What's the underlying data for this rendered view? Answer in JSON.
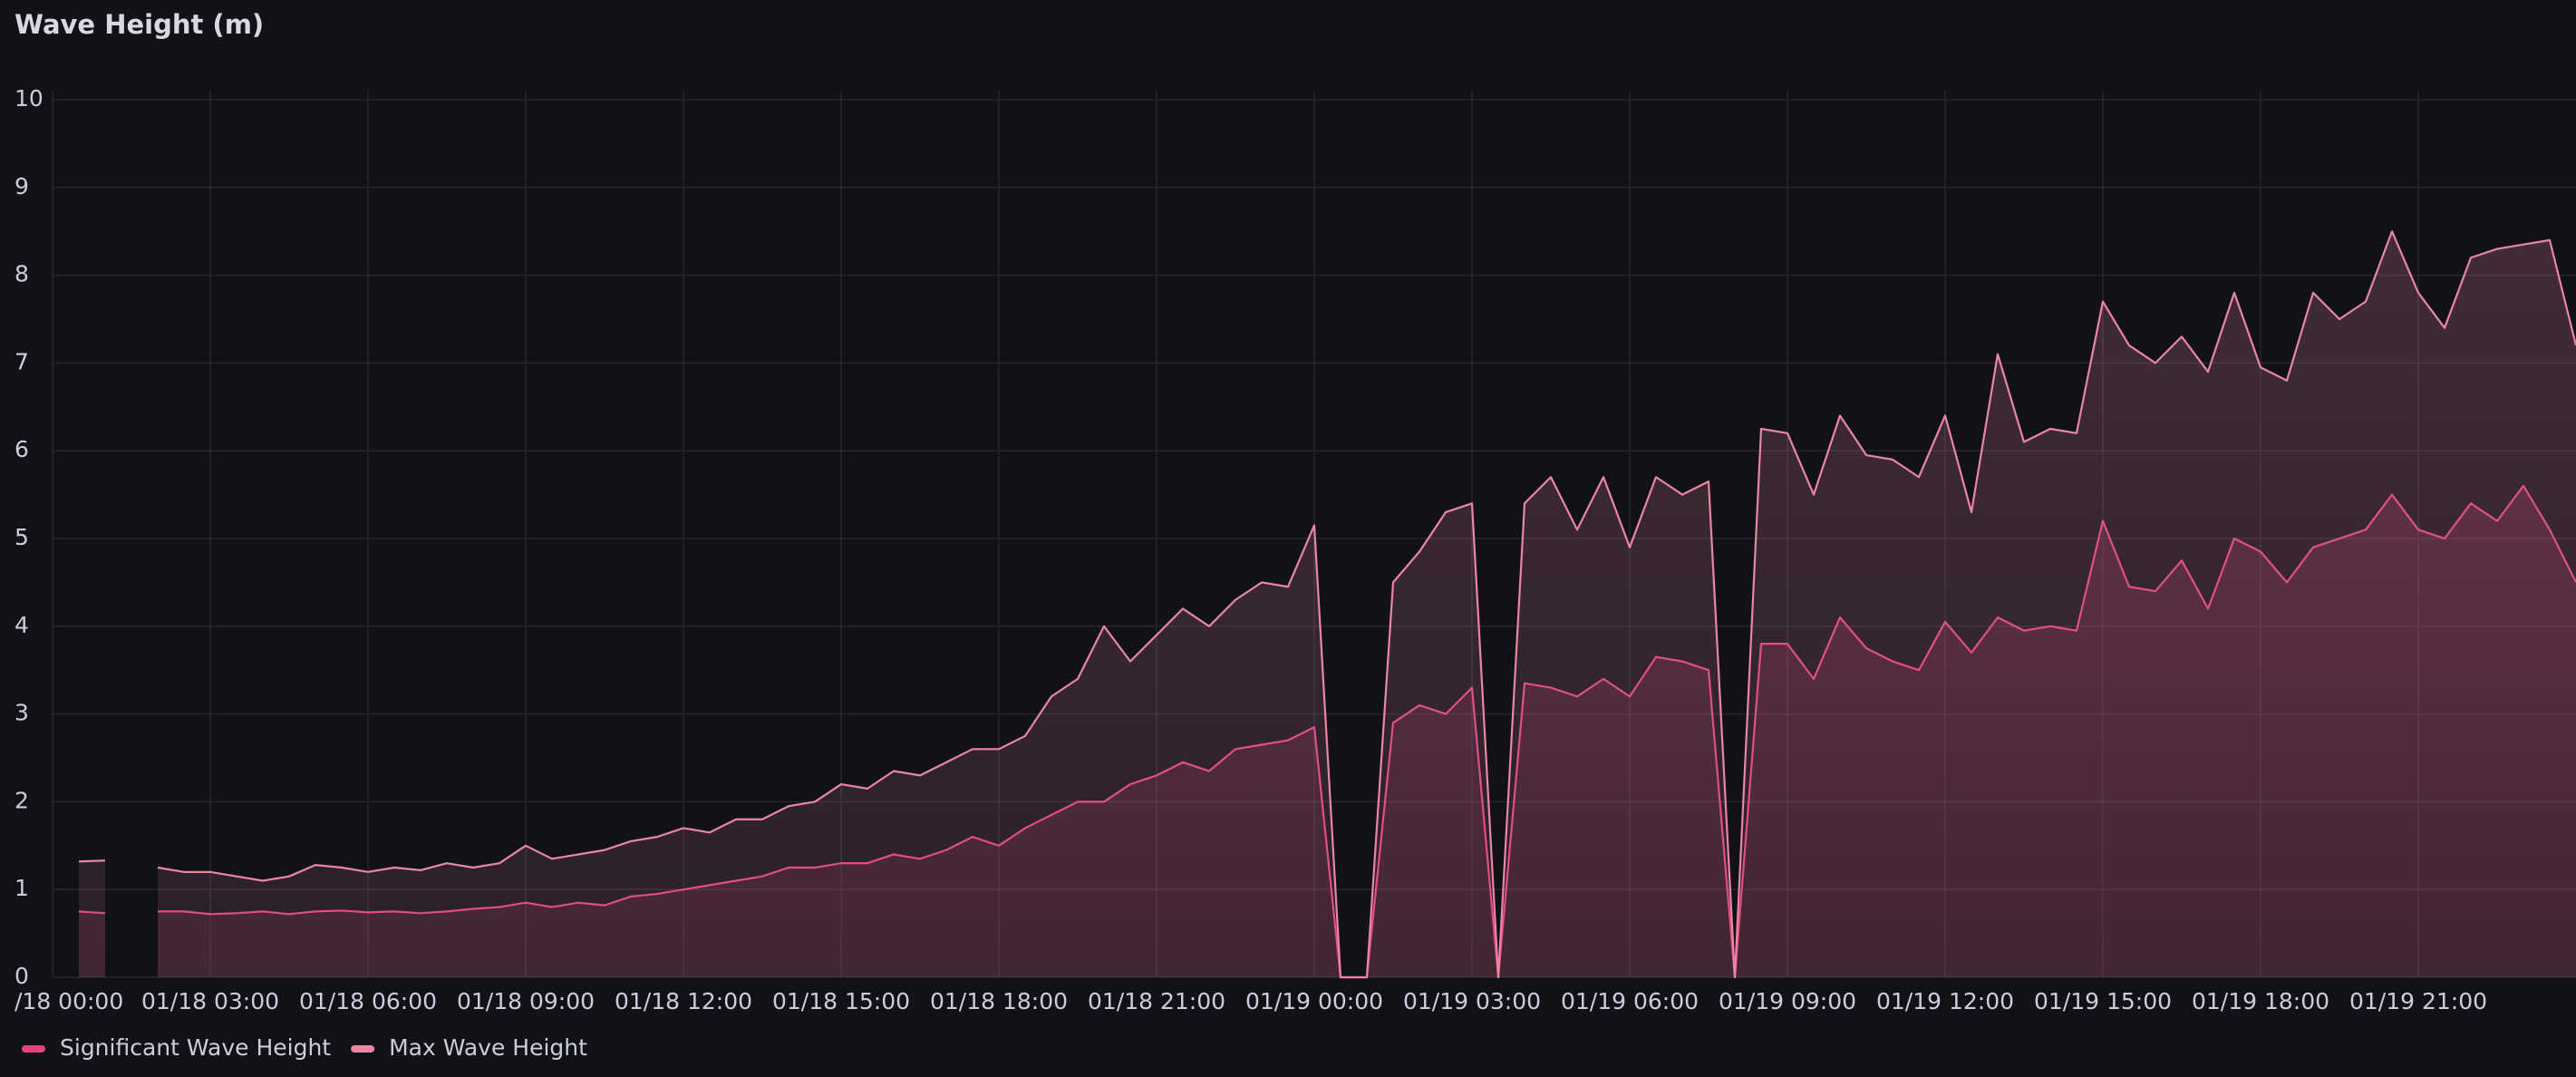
{
  "chart_data": {
    "type": "line",
    "title": "Wave Height (m)",
    "x": [
      "01/18 00:30",
      "01/18 01:00",
      "01/18 01:30",
      "01/18 02:00",
      "01/18 02:30",
      "01/18 03:00",
      "01/18 03:30",
      "01/18 04:00",
      "01/18 04:30",
      "01/18 05:00",
      "01/18 05:30",
      "01/18 06:00",
      "01/18 06:30",
      "01/18 07:00",
      "01/18 07:30",
      "01/18 08:00",
      "01/18 08:30",
      "01/18 09:00",
      "01/18 09:30",
      "01/18 10:00",
      "01/18 10:30",
      "01/18 11:00",
      "01/18 11:30",
      "01/18 12:00",
      "01/18 12:30",
      "01/18 13:00",
      "01/18 13:30",
      "01/18 14:00",
      "01/18 14:30",
      "01/18 15:00",
      "01/18 15:30",
      "01/18 16:00",
      "01/18 16:30",
      "01/18 17:00",
      "01/18 17:30",
      "01/18 18:00",
      "01/18 18:30",
      "01/18 19:00",
      "01/18 19:30",
      "01/18 20:00",
      "01/18 20:30",
      "01/18 21:00",
      "01/18 21:30",
      "01/18 22:00",
      "01/18 22:30",
      "01/18 23:00",
      "01/18 23:30",
      "01/19 00:00",
      "01/19 00:30",
      "01/19 01:00",
      "01/19 01:30",
      "01/19 02:00",
      "01/19 02:30",
      "01/19 03:00",
      "01/19 03:30",
      "01/19 04:00",
      "01/19 04:30",
      "01/19 05:00",
      "01/19 05:30",
      "01/19 06:00",
      "01/19 06:30",
      "01/19 07:00",
      "01/19 07:30",
      "01/19 08:00",
      "01/19 08:30",
      "01/19 09:00",
      "01/19 09:30",
      "01/19 10:00",
      "01/19 10:30",
      "01/19 11:00",
      "01/19 11:30",
      "01/19 12:00",
      "01/19 12:30",
      "01/19 13:00",
      "01/19 13:30",
      "01/19 14:00",
      "01/19 14:30",
      "01/19 15:00",
      "01/19 15:30",
      "01/19 16:00",
      "01/19 16:30",
      "01/19 17:00",
      "01/19 17:30",
      "01/19 18:00",
      "01/19 18:30",
      "01/19 19:00",
      "01/19 19:30",
      "01/19 20:00",
      "01/19 20:30",
      "01/19 21:00",
      "01/19 21:30",
      "01/19 22:00",
      "01/19 22:30",
      "01/19 23:00",
      "01/19 23:30",
      "01/20 00:00"
    ],
    "series": [
      {
        "name": "Significant Wave Height",
        "color": "#e0457b",
        "values": [
          0.75,
          0.73,
          null,
          0.75,
          0.75,
          0.72,
          0.73,
          0.75,
          0.72,
          0.75,
          0.76,
          0.74,
          0.75,
          0.73,
          0.75,
          0.78,
          0.8,
          0.85,
          0.8,
          0.85,
          0.82,
          0.92,
          0.95,
          1.0,
          1.05,
          1.1,
          1.15,
          1.25,
          1.25,
          1.3,
          1.3,
          1.4,
          1.35,
          1.45,
          1.6,
          1.5,
          1.7,
          1.85,
          2.0,
          2.0,
          2.2,
          2.3,
          2.45,
          2.35,
          2.6,
          2.65,
          2.7,
          2.85,
          0,
          0,
          2.9,
          3.1,
          3.0,
          3.3,
          0,
          3.35,
          3.3,
          3.2,
          3.4,
          3.2,
          3.65,
          3.6,
          3.5,
          0,
          3.8,
          3.8,
          3.4,
          4.1,
          3.75,
          3.6,
          3.5,
          4.05,
          3.7,
          4.1,
          3.95,
          4.0,
          3.95,
          5.2,
          4.45,
          4.4,
          4.75,
          4.2,
          5.0,
          4.85,
          4.5,
          4.9,
          5.0,
          5.1,
          5.5,
          5.1,
          5.0,
          5.4,
          5.2,
          5.6,
          5.1,
          4.5
        ]
      },
      {
        "name": "Max Wave Height",
        "color": "#ea86a4",
        "values": [
          1.32,
          1.33,
          null,
          1.25,
          1.2,
          1.2,
          1.15,
          1.1,
          1.15,
          1.28,
          1.25,
          1.2,
          1.25,
          1.22,
          1.3,
          1.25,
          1.3,
          1.5,
          1.35,
          1.4,
          1.45,
          1.55,
          1.6,
          1.7,
          1.65,
          1.8,
          1.8,
          1.95,
          2.0,
          2.2,
          2.15,
          2.35,
          2.3,
          2.45,
          2.6,
          2.6,
          2.75,
          3.2,
          3.4,
          4.0,
          3.6,
          3.9,
          4.2,
          4.0,
          4.3,
          4.5,
          4.45,
          5.15,
          0,
          0,
          4.5,
          4.85,
          5.3,
          5.4,
          0,
          5.4,
          5.7,
          5.1,
          5.7,
          4.9,
          5.7,
          5.5,
          5.65,
          0,
          6.25,
          6.2,
          5.5,
          6.4,
          5.95,
          5.9,
          5.7,
          6.4,
          5.3,
          7.1,
          6.1,
          6.25,
          6.2,
          7.7,
          7.2,
          7.0,
          7.3,
          6.9,
          7.8,
          6.95,
          6.8,
          7.8,
          7.5,
          7.7,
          8.5,
          7.8,
          7.4,
          8.2,
          8.3,
          8.35,
          8.4,
          7.2
        ]
      }
    ],
    "xlim": [
      "01/18 00:00",
      "01/20 00:00"
    ],
    "xticks": [
      {
        "value": "01/18 00:00",
        "label": "/18 00:00"
      },
      "01/18 03:00",
      "01/18 06:00",
      "01/18 09:00",
      "01/18 12:00",
      "01/18 15:00",
      "01/18 18:00",
      "01/18 21:00",
      "01/19 00:00",
      "01/19 03:00",
      "01/19 06:00",
      "01/19 09:00",
      "01/19 12:00",
      "01/19 15:00",
      "01/19 18:00",
      "01/19 21:00"
    ],
    "ylim": [
      0,
      10
    ],
    "yticks": [
      0,
      1,
      2,
      3,
      4,
      5,
      6,
      7,
      8,
      9,
      10
    ],
    "grid": true,
    "legend": "bottom-left"
  }
}
